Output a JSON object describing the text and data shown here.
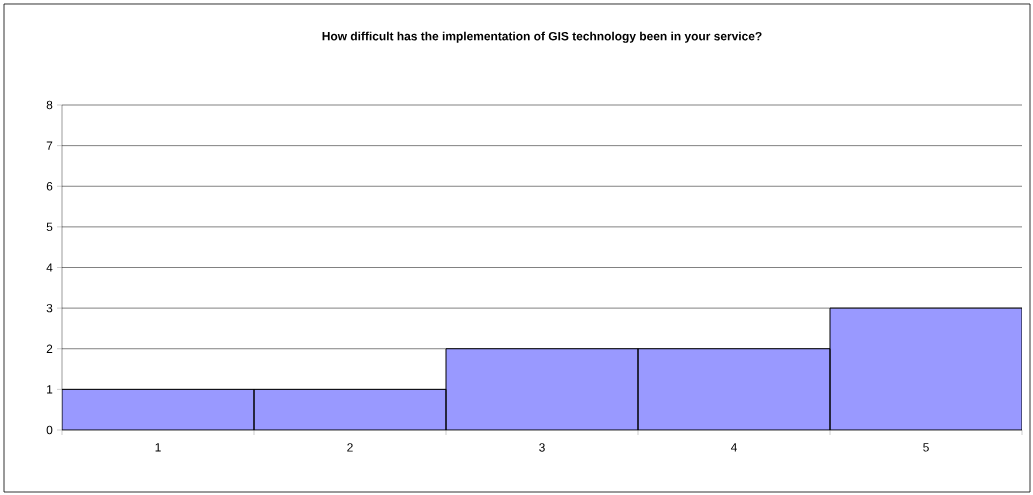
{
  "chart_data": {
    "type": "bar",
    "title": "How difficult has the implementation of GIS technology been in your service?",
    "categories": [
      "1",
      "2",
      "3",
      "4",
      "5"
    ],
    "values": [
      1,
      1,
      2,
      2,
      3
    ],
    "color": "#9999ff",
    "ylim": [
      0,
      8
    ],
    "yticks": [
      0,
      1,
      2,
      3,
      4,
      5,
      6,
      7,
      8
    ],
    "grid": "y"
  }
}
